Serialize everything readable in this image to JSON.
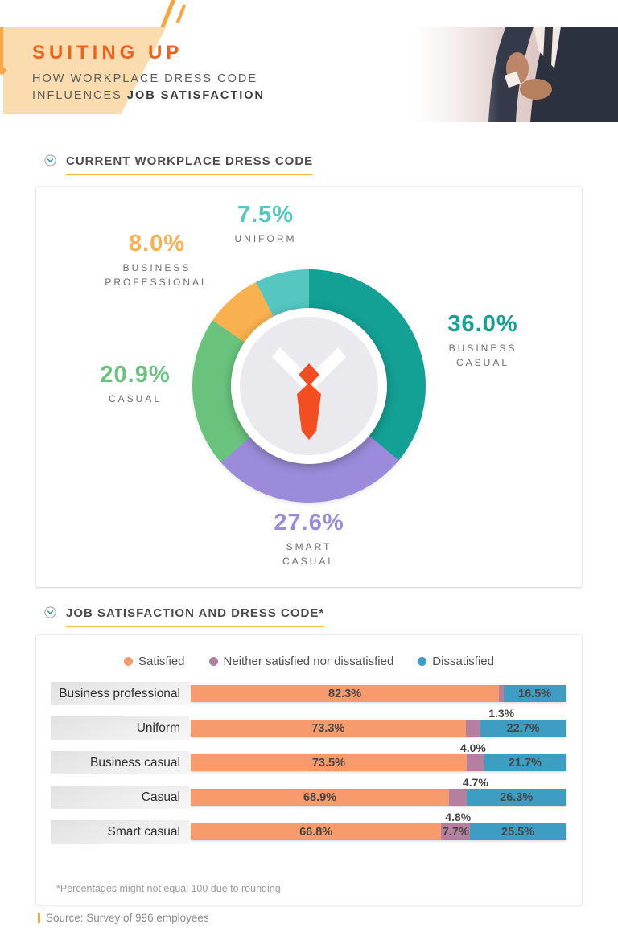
{
  "header": {
    "title": "SUITING UP",
    "subtitle_line1": "HOW WORKPLACE DRESS CODE",
    "subtitle_line2_light": "INFLUENCES",
    "subtitle_line2_bold": "JOB SATISFACTION"
  },
  "colors": {
    "accent_orange": "#F2611C",
    "banner_peach": "#FBDCAE",
    "slash_orange": "#F9A53E",
    "underline_yellow": "#F6BA41",
    "tie_red": "#F34E22"
  },
  "sections": {
    "dress_code": {
      "title": "CURRENT WORKPLACE DRESS CODE"
    },
    "satisfaction": {
      "title": "JOB SATISFACTION AND DRESS CODE*"
    }
  },
  "chart_data": [
    {
      "type": "pie",
      "title": "CURRENT WORKPLACE DRESS CODE",
      "donut": true,
      "start_angle_deg": 0,
      "direction": "clockwise",
      "center_icon": "tie-icon",
      "slices": [
        {
          "label": "BUSINESS\nCASUAL",
          "value": 36.0,
          "value_label": "36.0%",
          "color": "#13A095"
        },
        {
          "label": "SMART\nCASUAL",
          "value": 27.6,
          "value_label": "27.6%",
          "color": "#9C8BDA"
        },
        {
          "label": "CASUAL",
          "value": 20.9,
          "value_label": "20.9%",
          "color": "#69C37D"
        },
        {
          "label": "BUSINESS\nPROFESSIONAL",
          "value": 8.0,
          "value_label": "8.0%",
          "color": "#F9B04E"
        },
        {
          "label": "UNIFORM",
          "value": 7.5,
          "value_label": "7.5%",
          "color": "#55C6C0"
        }
      ]
    },
    {
      "type": "bar",
      "title": "JOB SATISFACTION AND DRESS CODE*",
      "stacked": true,
      "orientation": "horizontal",
      "xlim": [
        0,
        100
      ],
      "categories": [
        "Business professional",
        "Uniform",
        "Business casual",
        "Casual",
        "Smart casual"
      ],
      "series": [
        {
          "name": "Satisfied",
          "color": "#F89B6C",
          "values": [
            82.3,
            73.3,
            73.5,
            68.9,
            66.8
          ]
        },
        {
          "name": "Neither satisfied nor dissatisfied",
          "color": "#B5809F",
          "values": [
            1.3,
            4.0,
            4.7,
            4.8,
            7.7
          ]
        },
        {
          "name": "Dissatisfied",
          "color": "#3D9DC2",
          "values": [
            16.5,
            22.7,
            21.7,
            26.3,
            25.5
          ]
        }
      ],
      "legend_position": "top",
      "footnote": "*Percentages might not equal 100 due to rounding."
    }
  ],
  "footer": {
    "source": "Source: Survey of 996 employees"
  }
}
